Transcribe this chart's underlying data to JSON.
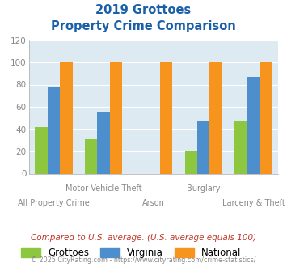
{
  "title_line1": "2019 Grottoes",
  "title_line2": "Property Crime Comparison",
  "categories": [
    "All Property Crime",
    "Motor Vehicle Theft",
    "Arson",
    "Burglary",
    "Larceny & Theft"
  ],
  "grottoes": [
    42,
    31,
    0,
    20,
    48
  ],
  "virginia": [
    78,
    55,
    0,
    48,
    87
  ],
  "national": [
    100,
    100,
    100,
    100,
    100
  ],
  "color_grottoes": "#8dc63f",
  "color_virginia": "#4d8fcc",
  "color_national": "#f7941d",
  "ylim": [
    0,
    120
  ],
  "yticks": [
    0,
    20,
    40,
    60,
    80,
    100,
    120
  ],
  "bg_color": "#ddeaf2",
  "note": "Compared to U.S. average. (U.S. average equals 100)",
  "footer": "© 2025 CityRating.com - https://www.cityrating.com/crime-statistics/",
  "title_color": "#1a5fa8",
  "note_color": "#c0392b",
  "footer_color": "#888888",
  "bar_width": 0.25,
  "group_positions": [
    0.5,
    1.5,
    2.5,
    3.5,
    4.5
  ],
  "label_top_row": [
    "",
    "Motor Vehicle Theft",
    "",
    "Burglary",
    ""
  ],
  "label_bot_row": [
    "All Property Crime",
    "",
    "Arson",
    "",
    "Larceny & Theft"
  ]
}
